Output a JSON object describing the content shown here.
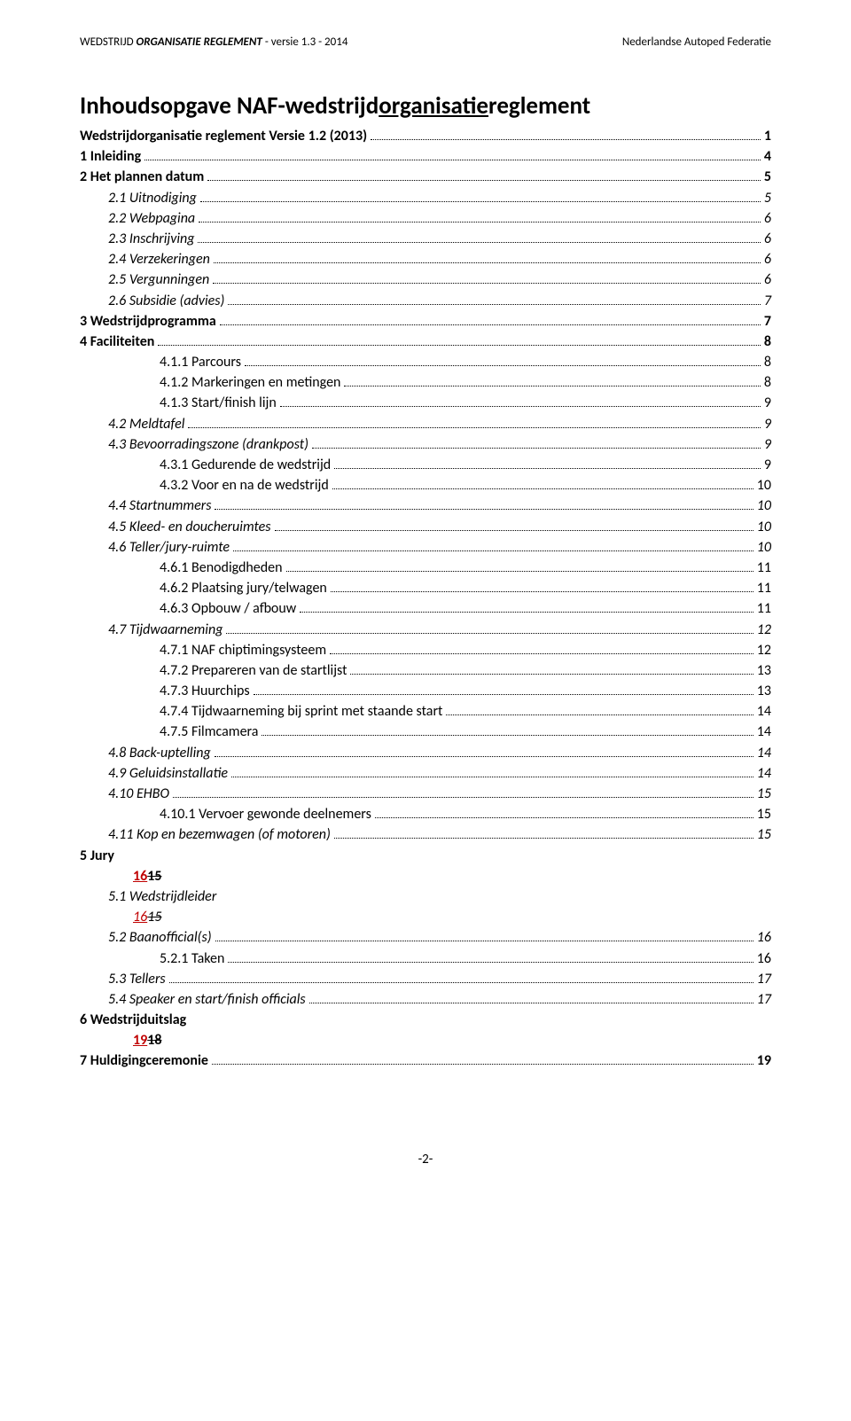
{
  "header": {
    "left_plain": "WEDSTRIJD ",
    "left_bold": "ORGANISATIE REGLEMENT",
    "left_suffix": " - versie 1.3 - 2014",
    "right": "Nederlandse Autoped Federatie"
  },
  "title": {
    "pre": "Inhoudsopgave NAF-wedstrijd",
    "underlined": "organisatie",
    "post": "reglement"
  },
  "toc": [
    {
      "label": "Wedstrijdorganisatie reglement Versie 1.2 (2013)",
      "page": "1",
      "level": 0,
      "bold": true
    },
    {
      "label": "1    Inleiding",
      "page": "4",
      "level": 0,
      "bold": true
    },
    {
      "label": "2    Het plannen datum",
      "page": "5",
      "level": 0,
      "bold": true
    },
    {
      "label": "2.1   Uitnodiging",
      "page": "5",
      "level": 1,
      "italic": true
    },
    {
      "label": "2.2   Webpagina",
      "page": "6",
      "level": 1,
      "italic": true
    },
    {
      "label": "2.3   Inschrijving",
      "page": "6",
      "level": 1,
      "italic": true
    },
    {
      "label": "2.4   Verzekeringen",
      "page": "6",
      "level": 1,
      "italic": true
    },
    {
      "label": "2.5   Vergunningen",
      "page": "6",
      "level": 1,
      "italic": true
    },
    {
      "label": "2.6   Subsidie (advies)",
      "page": "7",
      "level": 1,
      "italic": true
    },
    {
      "label": "3    Wedstrijdprogramma",
      "page": "7",
      "level": 0,
      "bold": true
    },
    {
      "label": "4    Faciliteiten",
      "page": "8",
      "level": 0,
      "bold": true
    },
    {
      "label": "4.1.1    Parcours",
      "page": "8",
      "level": 2
    },
    {
      "label": "4.1.2    Markeringen en metingen",
      "page": "8",
      "level": 2
    },
    {
      "label": "4.1.3    Start/finish lijn",
      "page": "9",
      "level": 2
    },
    {
      "label": "4.2   Meldtafel",
      "page": "9",
      "level": 1,
      "italic": true
    },
    {
      "label": "4.3   Bevoorradingszone (drankpost)",
      "page": "9",
      "level": 1,
      "italic": true
    },
    {
      "label": "4.3.1    Gedurende de wedstrijd",
      "page": "9",
      "level": 2
    },
    {
      "label": "4.3.2    Voor en na de wedstrijd",
      "page": "10",
      "level": 2
    },
    {
      "label": "4.4   Startnummers",
      "page": "10",
      "level": 1,
      "italic": true
    },
    {
      "label": "4.5   Kleed- en doucheruimtes",
      "page": "10",
      "level": 1,
      "italic": true
    },
    {
      "label": "4.6   Teller/jury-ruimte",
      "page": "10",
      "level": 1,
      "italic": true
    },
    {
      "label": "4.6.1    Benodigdheden",
      "page": "11",
      "level": 2
    },
    {
      "label": "4.6.2    Plaatsing jury/telwagen",
      "page": "11",
      "level": 2
    },
    {
      "label": "4.6.3    Opbouw / afbouw",
      "page": "11",
      "level": 2
    },
    {
      "label": "4.7   Tijdwaarneming",
      "page": "12",
      "level": 1,
      "italic": true
    },
    {
      "label": "4.7.1    NAF chiptimingsysteem",
      "page": "12",
      "level": 2
    },
    {
      "label": "4.7.2    Prepareren van de startlijst",
      "page": "13",
      "level": 2
    },
    {
      "label": "4.7.3    Huurchips",
      "page": "13",
      "level": 2
    },
    {
      "label": "4.7.4    Tijdwaarneming bij sprint met staande start",
      "page": "14",
      "level": 2
    },
    {
      "label": "4.7.5    Filmcamera",
      "page": "14",
      "level": 2
    },
    {
      "label": "4.8   Back-uptelling",
      "page": "14",
      "level": 1,
      "italic": true
    },
    {
      "label": "4.9   Geluidsinstallatie",
      "page": "14",
      "level": 1,
      "italic": true
    },
    {
      "label": "4.10 EHBO",
      "page": "15",
      "level": 1,
      "italic": true
    },
    {
      "label": "4.10.1  Vervoer gewonde deelnemers",
      "page": "15",
      "level": 2
    },
    {
      "label": "4.11 Kop en bezemwagen (of motoren)",
      "page": "15",
      "level": 1,
      "italic": true
    }
  ],
  "jury": {
    "line5": "5    Jury",
    "rev1_new": "16",
    "rev1_old": "15",
    "line51": "5.1   Wedstrijdleider",
    "rev2_new": "16",
    "rev2_old": "15"
  },
  "toc2": [
    {
      "label": "5.2   Baanofficial(s)",
      "page": "16",
      "level": 1,
      "italic": true
    },
    {
      "label": "5.2.1    Taken",
      "page": "16",
      "level": 2
    },
    {
      "label": "5.3   Tellers",
      "page": "17",
      "level": 1,
      "italic": true
    },
    {
      "label": "5.4   Speaker en start/finish officials",
      "page": "17",
      "level": 1,
      "italic": true
    }
  ],
  "uitslag": {
    "line6": "6    Wedstrijduitslag",
    "rev_new": "19",
    "rev_old": "18"
  },
  "toc3": [
    {
      "label": "7    Huldigingceremonie",
      "page": "19",
      "level": 0,
      "bold": true
    }
  ],
  "footer": "-2-"
}
